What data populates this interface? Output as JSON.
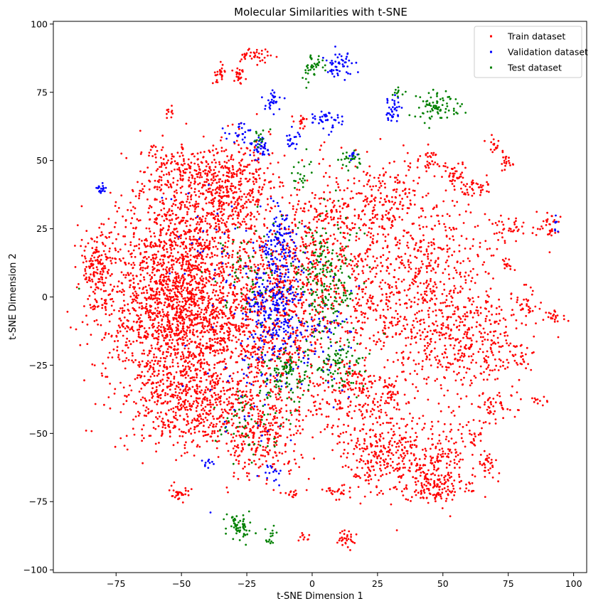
{
  "chart_data": {
    "type": "scatter",
    "title": "Molecular Similarities with t-SNE",
    "xlabel": "t-SNE Dimension 1",
    "ylabel": "t-SNE Dimension 2",
    "xlim": [
      -99,
      105
    ],
    "ylim": [
      -101,
      101
    ],
    "xticks": [
      -75,
      -50,
      -25,
      0,
      25,
      50,
      75,
      100
    ],
    "yticks": [
      -100,
      -75,
      -50,
      -25,
      0,
      25,
      50,
      75,
      100
    ],
    "xtick_labels": [
      "−75",
      "−50",
      "−25",
      "0",
      "25",
      "50",
      "75",
      "100"
    ],
    "ytick_labels": [
      "−100",
      "−75",
      "−50",
      "−25",
      "0",
      "25",
      "50",
      "75",
      "100"
    ],
    "grid": false,
    "legend_position": "top-right",
    "series": [
      {
        "name": "Train dataset",
        "color": "#ff0000",
        "clusters": [
          {
            "center": [
              -50,
              -5
            ],
            "spread": [
              15,
              15
            ],
            "count": 1700
          },
          {
            "center": [
              -48,
              -40
            ],
            "spread": [
              12,
              9
            ],
            "count": 500
          },
          {
            "center": [
              -50,
              25
            ],
            "spread": [
              12,
              14
            ],
            "count": 600
          },
          {
            "center": [
              -30,
              40
            ],
            "spread": [
              7,
              9
            ],
            "count": 350
          },
          {
            "center": [
              -15,
              -10
            ],
            "spread": [
              12,
              20
            ],
            "count": 700
          },
          {
            "center": [
              -20,
              -50
            ],
            "spread": [
              8,
              8
            ],
            "count": 250
          },
          {
            "center": [
              5,
              10
            ],
            "spread": [
              14,
              18
            ],
            "count": 500
          },
          {
            "center": [
              20,
              -40
            ],
            "spread": [
              10,
              8
            ],
            "count": 200
          },
          {
            "center": [
              15,
              30
            ],
            "spread": [
              10,
              8
            ],
            "count": 150
          },
          {
            "center": [
              -82,
              12
            ],
            "spread": [
              3,
              5
            ],
            "count": 130
          },
          {
            "center": [
              -81,
              -3
            ],
            "spread": [
              2,
              1.5
            ],
            "count": 20
          },
          {
            "center": [
              -57,
              47
            ],
            "spread": [
              5,
              5
            ],
            "count": 70
          },
          {
            "center": [
              -42,
              45
            ],
            "spread": [
              5,
              4
            ],
            "count": 90
          },
          {
            "center": [
              -22,
              89
            ],
            "spread": [
              3,
              1.5
            ],
            "count": 40
          },
          {
            "center": [
              -35,
              82
            ],
            "spread": [
              1.5,
              2
            ],
            "count": 25
          },
          {
            "center": [
              -28,
              81
            ],
            "spread": [
              1.5,
              1.5
            ],
            "count": 25
          },
          {
            "center": [
              -55,
              67
            ],
            "spread": [
              1,
              1
            ],
            "count": 10
          },
          {
            "center": [
              -4,
              64
            ],
            "spread": [
              1.5,
              1.5
            ],
            "count": 15
          },
          {
            "center": [
              -51,
              -72
            ],
            "spread": [
              2,
              1.5
            ],
            "count": 30
          },
          {
            "center": [
              -3,
              -88
            ],
            "spread": [
              1,
              1
            ],
            "count": 10
          },
          {
            "center": [
              13,
              -89
            ],
            "spread": [
              2,
              2
            ],
            "count": 30
          },
          {
            "center": [
              10,
              -71
            ],
            "spread": [
              3,
              1.5
            ],
            "count": 25
          },
          {
            "center": [
              -7,
              -72
            ],
            "spread": [
              2,
              1
            ],
            "count": 15
          },
          {
            "center": [
              25,
              -60
            ],
            "spread": [
              8,
              6
            ],
            "count": 200
          },
          {
            "center": [
              45,
              -60
            ],
            "spread": [
              10,
              8
            ],
            "count": 250
          },
          {
            "center": [
              47,
              -70
            ],
            "spread": [
              5,
              3
            ],
            "count": 100
          },
          {
            "center": [
              50,
              -15
            ],
            "spread": [
              10,
              10
            ],
            "count": 250
          },
          {
            "center": [
              65,
              -15
            ],
            "spread": [
              8,
              10
            ],
            "count": 200
          },
          {
            "center": [
              45,
              15
            ],
            "spread": [
              12,
              12
            ],
            "count": 300
          },
          {
            "center": [
              30,
              40
            ],
            "spread": [
              8,
              6
            ],
            "count": 100
          },
          {
            "center": [
              30,
              0
            ],
            "spread": [
              10,
              10
            ],
            "count": 200
          },
          {
            "center": [
              45,
              50
            ],
            "spread": [
              2,
              2
            ],
            "count": 30
          },
          {
            "center": [
              55,
              45
            ],
            "spread": [
              2,
              2
            ],
            "count": 40
          },
          {
            "center": [
              62,
              40
            ],
            "spread": [
              3,
              2
            ],
            "count": 40
          },
          {
            "center": [
              69,
              56
            ],
            "spread": [
              1.5,
              1.5
            ],
            "count": 15
          },
          {
            "center": [
              74,
              50
            ],
            "spread": [
              1.5,
              2
            ],
            "count": 20
          },
          {
            "center": [
              75,
              25
            ],
            "spread": [
              3,
              2
            ],
            "count": 35
          },
          {
            "center": [
              75,
              12
            ],
            "spread": [
              1.5,
              1.5
            ],
            "count": 15
          },
          {
            "center": [
              90,
              25
            ],
            "spread": [
              3,
              3
            ],
            "count": 35
          },
          {
            "center": [
              93,
              -7
            ],
            "spread": [
              1.5,
              1
            ],
            "count": 20
          },
          {
            "center": [
              82,
              -3
            ],
            "spread": [
              3,
              3
            ],
            "count": 30
          },
          {
            "center": [
              80,
              -22
            ],
            "spread": [
              2,
              3
            ],
            "count": 25
          },
          {
            "center": [
              87,
              -38
            ],
            "spread": [
              1.5,
              1
            ],
            "count": 12
          },
          {
            "center": [
              70,
              -40
            ],
            "spread": [
              4,
              4
            ],
            "count": 50
          },
          {
            "center": [
              67,
              -61
            ],
            "spread": [
              2,
              2
            ],
            "count": 25
          },
          {
            "center": [
              30,
              -35
            ],
            "spread": [
              2,
              2
            ],
            "count": 25
          },
          {
            "center": [
              15,
              -30
            ],
            "spread": [
              4,
              4
            ],
            "count": 40
          },
          {
            "center": [
              62,
              -52
            ],
            "spread": [
              2,
              2
            ],
            "count": 20
          }
        ]
      },
      {
        "name": "Validation dataset",
        "color": "#0000ff",
        "clusters": [
          {
            "center": [
              -15,
              -5
            ],
            "spread": [
              6,
              12
            ],
            "count": 300
          },
          {
            "center": [
              -12,
              22
            ],
            "spread": [
              3,
              6
            ],
            "count": 100
          },
          {
            "center": [
              0,
              -15
            ],
            "spread": [
              8,
              10
            ],
            "count": 80
          },
          {
            "center": [
              -81,
              40
            ],
            "spread": [
              1,
              1
            ],
            "count": 20
          },
          {
            "center": [
              10,
              85
            ],
            "spread": [
              3,
              2.5
            ],
            "count": 50
          },
          {
            "center": [
              5,
              65
            ],
            "spread": [
              3,
              2
            ],
            "count": 40
          },
          {
            "center": [
              -20,
              55
            ],
            "spread": [
              2,
              2
            ],
            "count": 40
          },
          {
            "center": [
              -15,
              72
            ],
            "spread": [
              2,
              2
            ],
            "count": 30
          },
          {
            "center": [
              -28,
              60
            ],
            "spread": [
              3,
              2
            ],
            "count": 25
          },
          {
            "center": [
              31,
              70
            ],
            "spread": [
              2,
              3
            ],
            "count": 35
          },
          {
            "center": [
              -40,
              -61
            ],
            "spread": [
              1,
              1
            ],
            "count": 10
          },
          {
            "center": [
              -15,
              -65
            ],
            "spread": [
              2,
              2
            ],
            "count": 15
          },
          {
            "center": [
              15,
              52
            ],
            "spread": [
              1,
              1
            ],
            "count": 10
          },
          {
            "center": [
              -25,
              -35
            ],
            "spread": [
              10,
              15
            ],
            "count": 40
          },
          {
            "center": [
              -40,
              20
            ],
            "spread": [
              10,
              10
            ],
            "count": 30
          },
          {
            "center": [
              -8,
              58
            ],
            "spread": [
              2,
              2
            ],
            "count": 20
          },
          {
            "center": [
              93,
              26
            ],
            "spread": [
              0.5,
              1.5
            ],
            "count": 8
          }
        ]
      },
      {
        "name": "Test dataset",
        "color": "#008000",
        "clusters": [
          {
            "center": [
              5,
              5
            ],
            "spread": [
              6,
              12
            ],
            "count": 200
          },
          {
            "center": [
              -10,
              -28
            ],
            "spread": [
              5,
              5
            ],
            "count": 100
          },
          {
            "center": [
              10,
              -25
            ],
            "spread": [
              5,
              5
            ],
            "count": 80
          },
          {
            "center": [
              47,
              70
            ],
            "spread": [
              4,
              3
            ],
            "count": 80
          },
          {
            "center": [
              0,
              84
            ],
            "spread": [
              2,
              2.5
            ],
            "count": 40
          },
          {
            "center": [
              -28,
              -84
            ],
            "spread": [
              3,
              3
            ],
            "count": 60
          },
          {
            "center": [
              -16,
              -88
            ],
            "spread": [
              1,
              2
            ],
            "count": 15
          },
          {
            "center": [
              15,
              50
            ],
            "spread": [
              2,
              2
            ],
            "count": 25
          },
          {
            "center": [
              -22,
              -45
            ],
            "spread": [
              8,
              6
            ],
            "count": 60
          },
          {
            "center": [
              -25,
              10
            ],
            "spread": [
              8,
              12
            ],
            "count": 60
          },
          {
            "center": [
              -5,
              45
            ],
            "spread": [
              2,
              3
            ],
            "count": 20
          },
          {
            "center": [
              -20,
              58
            ],
            "spread": [
              1.5,
              1.5
            ],
            "count": 15
          },
          {
            "center": [
              32,
              75
            ],
            "spread": [
              1,
              1
            ],
            "count": 10
          },
          {
            "center": [
              -89,
              3
            ],
            "spread": [
              0.3,
              0.3
            ],
            "count": 1
          }
        ]
      }
    ]
  }
}
